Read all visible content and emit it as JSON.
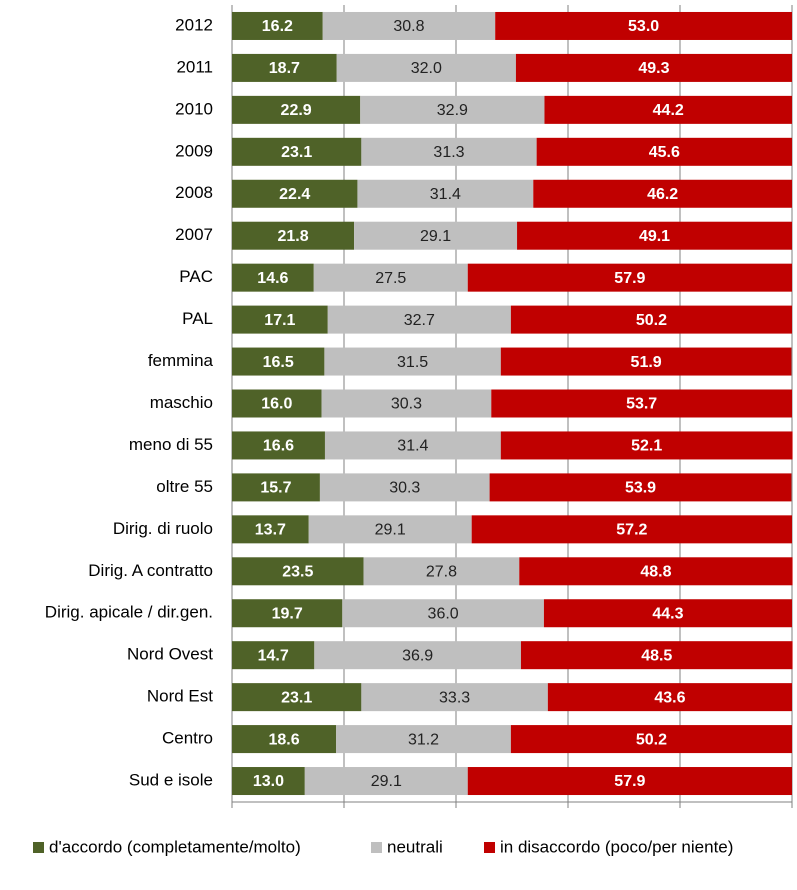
{
  "chart_data": {
    "type": "bar",
    "orientation": "horizontal",
    "stacked": true,
    "categories": [
      "2012",
      "2011",
      "2010",
      "2009",
      "2008",
      "2007",
      "PAC",
      "PAL",
      "femmina",
      "maschio",
      "meno di 55",
      "oltre 55",
      "Dirig. di ruolo",
      "Dirig. A contratto",
      "Dirig. apicale / dir.gen.",
      "Nord Ovest",
      "Nord Est",
      "Centro",
      "Sud e isole"
    ],
    "series": [
      {
        "name": "d'accordo (completamente/molto)",
        "color": "#4f6228",
        "values": [
          16.2,
          18.7,
          22.9,
          23.1,
          22.4,
          21.8,
          14.6,
          17.1,
          16.5,
          16.0,
          16.6,
          15.7,
          13.7,
          23.5,
          19.7,
          14.7,
          23.1,
          18.6,
          13.0
        ],
        "value_labels": [
          "16.2",
          "18.7",
          "22.9",
          "23.1",
          "22.4",
          "21.8",
          "14.6",
          "17.1",
          "16.5",
          "16.0",
          "16.6",
          "15.7",
          "13.7",
          "23.5",
          "19.7",
          "14.7",
          "23.1",
          "18.6",
          "13.0"
        ]
      },
      {
        "name": "neutrali",
        "color": "#bfbfbf",
        "values": [
          30.8,
          32.0,
          32.9,
          31.3,
          31.4,
          29.1,
          27.5,
          32.7,
          31.5,
          30.3,
          31.4,
          30.3,
          29.1,
          27.8,
          36.0,
          36.9,
          33.3,
          31.2,
          29.1
        ],
        "value_labels": [
          "30.8",
          "32.0",
          "32.9",
          "31.3",
          "31.4",
          "29.1",
          "27.5",
          "32.7",
          "31.5",
          "30.3",
          "31.4",
          "30.3",
          "29.1",
          "27.8",
          "36.0",
          "36.9",
          "33.3",
          "31.2",
          "29.1"
        ]
      },
      {
        "name": "in disaccordo (poco/per niente)",
        "color": "#c00000",
        "values": [
          53.0,
          49.3,
          44.2,
          45.6,
          46.2,
          49.1,
          57.9,
          50.2,
          51.9,
          53.7,
          52.1,
          53.9,
          57.2,
          48.8,
          44.3,
          48.5,
          43.6,
          50.2,
          57.9
        ],
        "value_labels": [
          "53.0",
          "49.3",
          "44.2",
          "45.6",
          "46.2",
          "49.1",
          "57.9",
          "50.2",
          "51.9",
          "53.7",
          "52.1",
          "53.9",
          "57.2",
          "48.8",
          "44.3",
          "48.5",
          "43.6",
          "50.2",
          "57.9"
        ]
      }
    ],
    "xlim": [
      0,
      100
    ],
    "xticks": [
      0,
      20,
      40,
      60,
      80,
      100
    ],
    "grid": true,
    "legend": "bottom"
  }
}
